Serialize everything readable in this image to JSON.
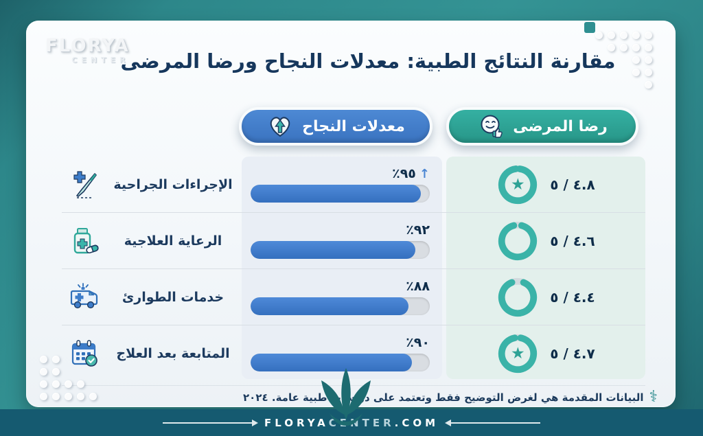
{
  "brand": {
    "logo_primary": "FLORYA",
    "logo_secondary": "CENTER"
  },
  "title": "مقارنة النتائج الطبية: معدلات النجاح ورضا المرضى",
  "columns": {
    "success_label": "معدلات النجاح",
    "satisfaction_label": "رضا المرضى"
  },
  "rows": [
    {
      "label": "الإجراءات الجراحية",
      "icon": "scalpel-icon",
      "percent_text": "٪٩٥",
      "percent": 95,
      "trend_arrow": "↑",
      "rating_text": "٤.٨ / ٥",
      "rating": 4.8,
      "star": true
    },
    {
      "label": "الرعاية العلاجية",
      "icon": "medicine-bottle-icon",
      "percent_text": "٪٩٢",
      "percent": 92,
      "trend_arrow": "",
      "rating_text": "٤.٦ / ٥",
      "rating": 4.6,
      "star": false
    },
    {
      "label": "خدمات الطوارئ",
      "icon": "ambulance-icon",
      "percent_text": "٪٨٨",
      "percent": 88,
      "trend_arrow": "",
      "rating_text": "٤.٤ / ٥",
      "rating": 4.4,
      "star": false
    },
    {
      "label": "المتابعة بعد العلاج",
      "icon": "calendar-check-icon",
      "percent_text": "٪٩٠",
      "percent": 90,
      "trend_arrow": "",
      "rating_text": "٤.٧ / ٥",
      "rating": 4.7,
      "star": true
    }
  ],
  "footer": {
    "disclaimer": "البيانات المقدمة هي لغرض التوضيح فقط وتعتمد على دراسات طبية عامة. ٢٠٢٤"
  },
  "website": {
    "part1": "FLORYA",
    "part2": "CENTER",
    "part3": ".COM"
  },
  "colors": {
    "accent_blue": "#3d7ac7",
    "accent_teal": "#2faa9c",
    "navy_text": "#16375c",
    "frame_teal": "#2d8a8c",
    "bottom_bar": "#155a70",
    "bar_track": "#d9dde2",
    "panel_blue": "#e9eef5",
    "panel_mint": "#e3f0ec"
  },
  "chart_data": {
    "type": "bar",
    "title": "مقارنة النتائج الطبية: معدلات النجاح ورضا المرضى",
    "categories": [
      "الإجراءات الجراحية",
      "الرعاية العلاجية",
      "خدمات الطوارئ",
      "المتابعة بعد العلاج"
    ],
    "series": [
      {
        "name": "معدلات النجاح",
        "unit": "%",
        "values": [
          95,
          92,
          88,
          90
        ]
      },
      {
        "name": "رضا المرضى",
        "unit": "out of 5",
        "values": [
          4.8,
          4.6,
          4.4,
          4.7
        ]
      }
    ],
    "xlabel": "",
    "ylabel": "",
    "ylim": [
      0,
      100
    ],
    "legend_position": "top",
    "grid": false
  }
}
